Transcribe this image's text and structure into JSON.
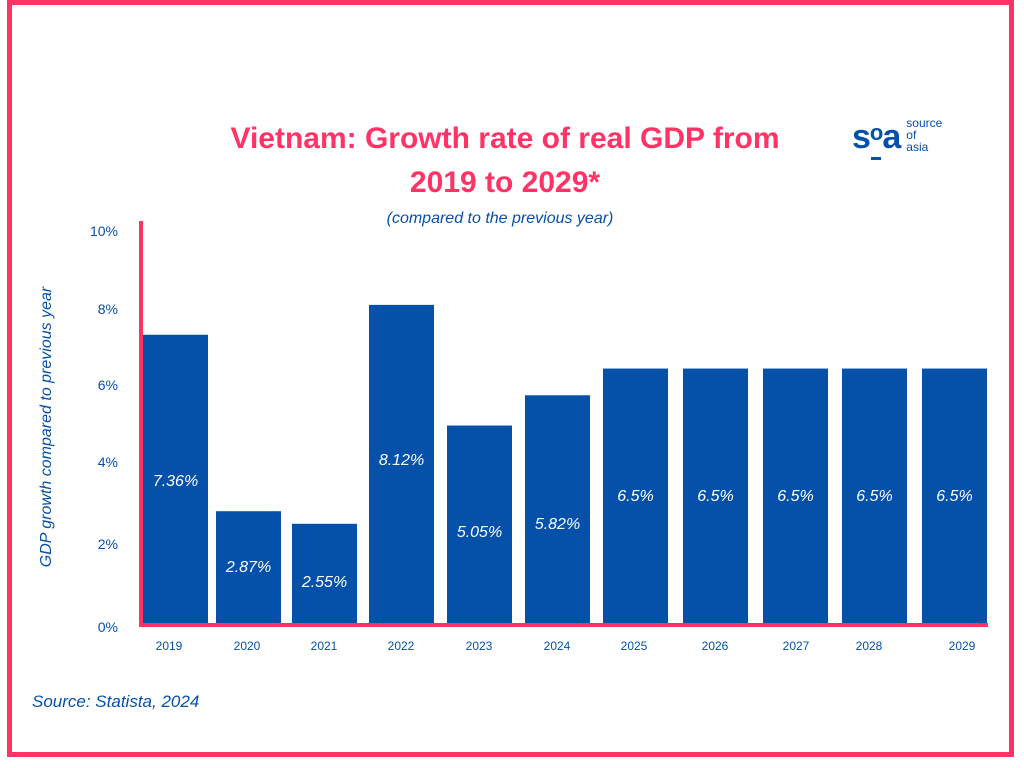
{
  "chart_data": {
    "type": "bar",
    "title": "Vietnam: Growth rate of real GDP from 2019 to 2029*",
    "title_lines": [
      "Vietnam: Growth rate of real GDP from",
      "2019 to 2029*"
    ],
    "subtitle": "(compared to the previous year)",
    "xlabel": "",
    "ylabel": "GDP growth compared to previous year",
    "categories": [
      "2019",
      "2020",
      "2021",
      "2022",
      "2023",
      "2024",
      "2025",
      "2026",
      "2027",
      "2028",
      "2029"
    ],
    "values": [
      7.36,
      2.87,
      2.55,
      8.12,
      5.05,
      5.82,
      6.5,
      6.5,
      6.5,
      6.5,
      6.5
    ],
    "data_labels": [
      "7.36%",
      "2.87%",
      "2.55%",
      "8.12%",
      "5.05%",
      "5.82%",
      "6.5%",
      "6.5%",
      "6.5%",
      "6.5%",
      "6.5%"
    ],
    "ylim": [
      0,
      10
    ],
    "yticks": [
      0,
      2,
      4,
      6,
      8,
      10
    ],
    "ytick_labels": [
      "0%",
      "2%",
      "4%",
      "6%",
      "8%",
      "10%"
    ],
    "grid": false,
    "legend": "none"
  },
  "colors": {
    "accent": "#ff3366",
    "bar": "#0550a8",
    "text": "#0550a8",
    "label": "#ffffff"
  },
  "logo": {
    "mark": "so̲a",
    "text_lines": [
      "source",
      "of",
      "asia"
    ]
  },
  "source": "Source: Statista, 2024"
}
